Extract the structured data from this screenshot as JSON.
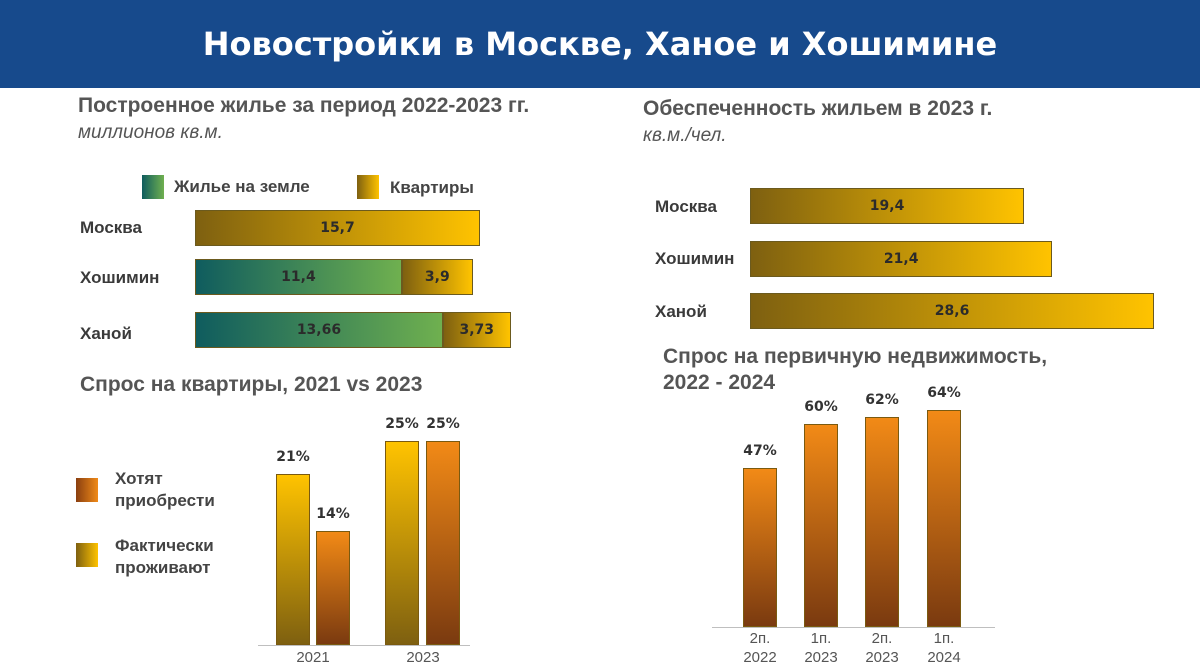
{
  "header": {
    "title": "Новостройки в Москве, Ханое и Хошимине"
  },
  "chart_data": [
    {
      "type": "bar",
      "title": "Построенное жилье за период 2022-2023 гг.",
      "subtitle": "миллионов кв.м.",
      "legend": [
        "Жилье на земле",
        "Квартиры"
      ],
      "legend_placement": "top",
      "categories": [
        "Москва",
        "Хошимин",
        "Ханой"
      ],
      "series": [
        {
          "name": "Жилье на земле",
          "values": [
            null,
            11.4,
            13.66
          ],
          "labels": [
            "",
            "11,4",
            "13,66"
          ]
        },
        {
          "name": "Квартиры",
          "values": [
            15.7,
            3.9,
            3.73
          ],
          "labels": [
            "15,7",
            "3,9",
            "3,73"
          ]
        }
      ],
      "orientation": "horizontal",
      "stacked": true
    },
    {
      "type": "bar",
      "title": "Обеспеченность жильем в 2023 г.",
      "subtitle": "кв.м./чел.",
      "categories": [
        "Москва",
        "Хошимин",
        "Ханой"
      ],
      "values": [
        19.4,
        21.4,
        28.6
      ],
      "labels": [
        "19,4",
        "21,4",
        "28,6"
      ],
      "orientation": "horizontal"
    },
    {
      "type": "bar",
      "title": "Спрос на квартиры, 2021 vs 2023",
      "legend": [
        "Хотят приобрести",
        "Фактически проживают"
      ],
      "legend_placement": "left",
      "categories": [
        "2021",
        "2023"
      ],
      "series": [
        {
          "name": "Фактически проживают",
          "values": [
            21,
            25
          ],
          "labels": [
            "21%",
            "25%"
          ]
        },
        {
          "name": "Хотят приобрести",
          "values": [
            14,
            25
          ],
          "labels": [
            "14%",
            "25%"
          ]
        }
      ],
      "ylim": [
        0,
        35
      ]
    },
    {
      "type": "bar",
      "title": "Спрос на первичную недвижимость, 2022 - 2024",
      "title_lines": [
        "Спрос на первичную недвижимость,",
        "2022 - 2024"
      ],
      "categories": [
        "2п. 2022",
        "1п. 2023",
        "2п. 2023",
        "1п. 2024"
      ],
      "category_lines": [
        [
          "2п.",
          "2022"
        ],
        [
          "1п.",
          "2023"
        ],
        [
          "2п.",
          "2023"
        ],
        [
          "1п.",
          "2024"
        ]
      ],
      "values": [
        47,
        60,
        62,
        64
      ],
      "labels": [
        "47%",
        "60%",
        "62%",
        "64%"
      ],
      "ylim": [
        0,
        80
      ]
    }
  ]
}
